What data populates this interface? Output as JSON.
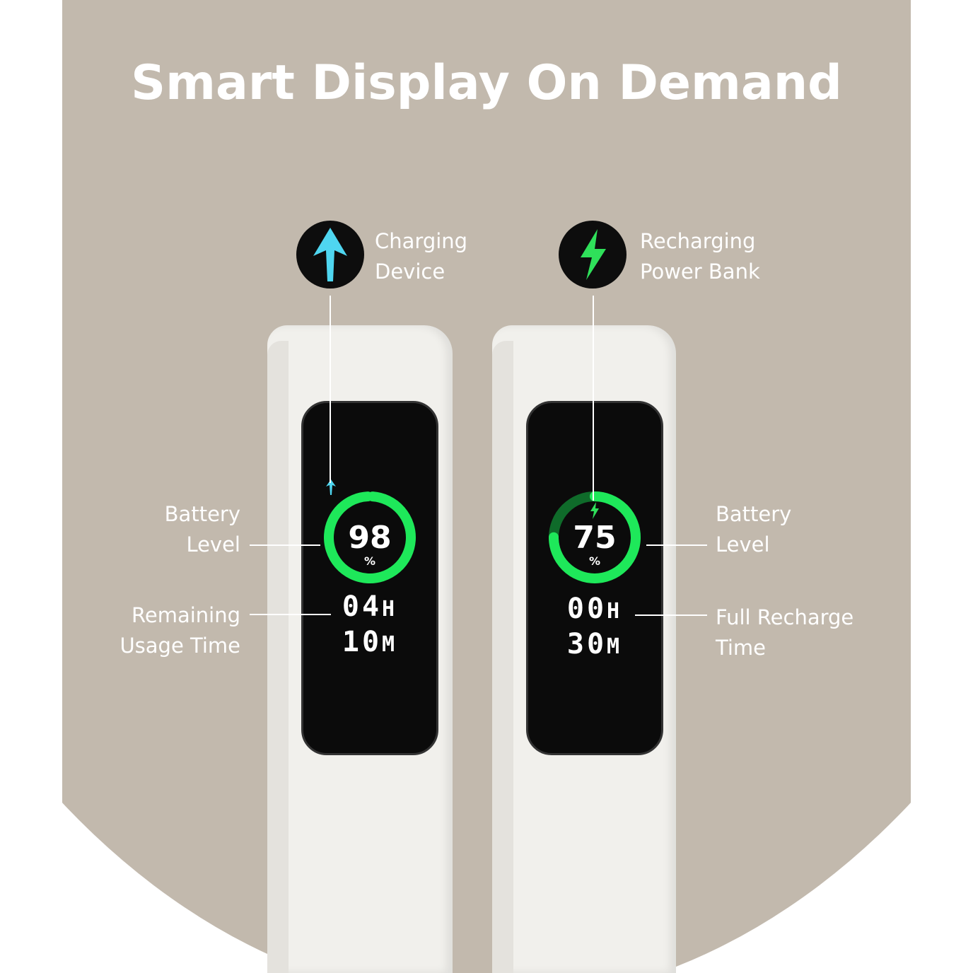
{
  "title": "Smart Display On Demand",
  "left": {
    "badge_icon": "arrow-up-icon",
    "badge_color": "#4fd6f0",
    "label_line1": "Charging",
    "label_line2": "Device",
    "battery_label_line1": "Battery",
    "battery_label_line2": "Level",
    "time_label_line1": "Remaining",
    "time_label_line2": "Usage Time",
    "percent": "98",
    "percent_sign": "%",
    "hours": "04",
    "hours_unit": "H",
    "minutes": "10",
    "minutes_unit": "M",
    "level": 98
  },
  "right": {
    "badge_icon": "lightning-bolt-icon",
    "badge_color": "#2fe05a",
    "label_line1": "Recharging",
    "label_line2": "Power Bank",
    "battery_label_line1": "Battery",
    "battery_label_line2": "Level",
    "time_label_line1": "Full Recharge",
    "time_label_line2": "Time",
    "percent": "75",
    "percent_sign": "%",
    "hours": "00",
    "hours_unit": "H",
    "minutes": "30",
    "minutes_unit": "M",
    "level": 75
  },
  "colors": {
    "ring": "#1ee85a",
    "ring_dim": "#0f6b2a",
    "background": "#c2b9ad"
  }
}
